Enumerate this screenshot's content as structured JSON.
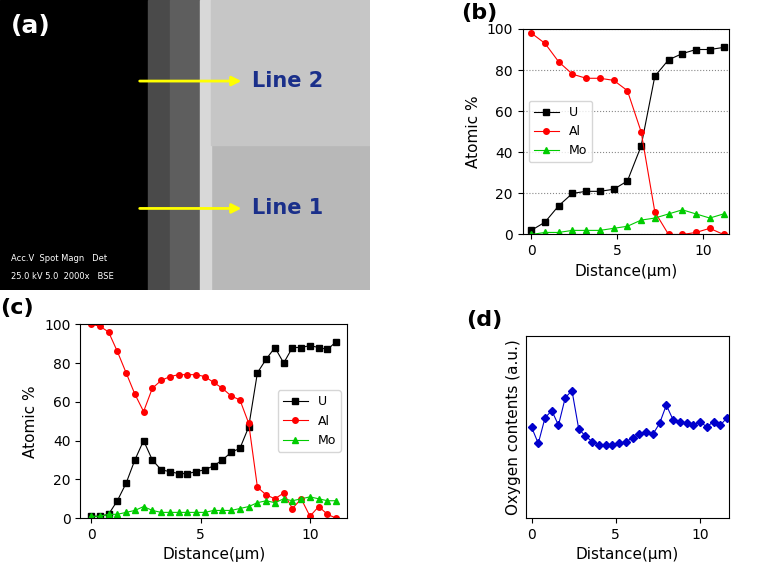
{
  "image": {
    "label": "(a)",
    "annotations": [
      "Line 2",
      "Line 1"
    ],
    "info_bar": [
      "Acc.V  Spot Magn   Det",
      "25.0 kV 5.0  2000x   BSE"
    ]
  },
  "chart_data": [
    {
      "type": "line",
      "title": "(b)",
      "xlabel": "Distance(μm)",
      "ylabel": "Atomic %",
      "x": [
        0,
        0.8,
        1.6,
        2.4,
        3.2,
        4.0,
        4.8,
        5.6,
        6.4,
        7.2,
        8.0,
        8.8,
        9.6,
        10.4,
        11.2
      ],
      "series": [
        {
          "name": "U",
          "color": "#000000",
          "marker": "s",
          "values": [
            2,
            6,
            14,
            20,
            21,
            21,
            22,
            26,
            43,
            77,
            85,
            88,
            90,
            90,
            91
          ]
        },
        {
          "name": "Al",
          "color": "#ff0000",
          "marker": "o",
          "values": [
            98,
            93,
            84,
            78,
            76,
            76,
            75,
            70,
            50,
            11,
            0,
            0,
            1,
            3,
            0
          ]
        },
        {
          "name": "Mo",
          "color": "#00cc00",
          "marker": "^",
          "values": [
            0,
            1,
            1,
            2,
            2,
            2,
            3,
            4,
            7,
            8,
            10,
            12,
            10,
            8,
            10
          ]
        }
      ],
      "xlim": [
        -0.5,
        11.5
      ],
      "xticks": [
        0,
        5,
        10
      ],
      "ylim": [
        0,
        100
      ],
      "yticks": [
        0,
        20,
        40,
        60,
        80,
        100
      ],
      "grid": "y",
      "legend": "center left"
    },
    {
      "type": "line",
      "title": "(c)",
      "xlabel": "Distance(μm)",
      "ylabel": "Atomic %",
      "x": [
        0,
        0.4,
        0.8,
        1.2,
        1.6,
        2.0,
        2.4,
        2.8,
        3.2,
        3.6,
        4.0,
        4.4,
        4.8,
        5.2,
        5.6,
        6.0,
        6.4,
        6.8,
        7.2,
        7.6,
        8.0,
        8.4,
        8.8,
        9.2,
        9.6,
        10.0,
        10.4,
        10.8,
        11.2
      ],
      "series": [
        {
          "name": "U",
          "color": "#000000",
          "marker": "s",
          "values": [
            1,
            1,
            2,
            9,
            18,
            30,
            40,
            30,
            25,
            24,
            23,
            23,
            24,
            25,
            27,
            30,
            34,
            36,
            47,
            75,
            82,
            88,
            80,
            88,
            88,
            89,
            88,
            87,
            91
          ]
        },
        {
          "name": "Al",
          "color": "#ff0000",
          "marker": "o",
          "values": [
            100,
            99,
            96,
            86,
            75,
            64,
            55,
            67,
            71,
            73,
            74,
            74,
            74,
            73,
            70,
            67,
            63,
            61,
            49,
            16,
            12,
            10,
            13,
            5,
            10,
            1,
            6,
            2,
            0
          ]
        },
        {
          "name": "Mo",
          "color": "#00cc00",
          "marker": "^",
          "values": [
            1,
            1,
            2,
            2,
            3,
            4,
            6,
            4,
            3,
            3,
            3,
            3,
            3,
            3,
            4,
            4,
            4,
            5,
            6,
            8,
            9,
            8,
            10,
            9,
            10,
            11,
            10,
            9,
            9
          ]
        }
      ],
      "xlim": [
        -0.5,
        11.7
      ],
      "xticks": [
        0,
        5,
        10
      ],
      "ylim": [
        0,
        100
      ],
      "yticks": [
        0,
        20,
        40,
        60,
        80,
        100
      ],
      "grid": false,
      "legend": "center right"
    },
    {
      "type": "line",
      "title": "(d)",
      "xlabel": "Distance(μm)",
      "ylabel": "Oxygen contents (a.u.)",
      "x": [
        0,
        0.4,
        0.8,
        1.2,
        1.6,
        2.0,
        2.4,
        2.8,
        3.2,
        3.6,
        4.0,
        4.4,
        4.8,
        5.2,
        5.6,
        6.0,
        6.4,
        6.8,
        7.2,
        7.6,
        8.0,
        8.4,
        8.8,
        9.2,
        9.6,
        10.0,
        10.4,
        10.8,
        11.2,
        11.6
      ],
      "series": [
        {
          "color": "#0000cc",
          "marker": "D",
          "values": [
            5.0,
            4.1,
            5.5,
            5.9,
            5.1,
            6.6,
            7.0,
            4.9,
            4.5,
            4.2,
            4.0,
            4.0,
            4.0,
            4.1,
            4.2,
            4.4,
            4.6,
            4.7,
            4.6,
            5.2,
            6.2,
            5.4,
            5.3,
            5.2,
            5.1,
            5.3,
            5.0,
            5.3,
            5.1,
            5.5
          ]
        }
      ],
      "xlim": [
        -0.3,
        11.7
      ],
      "xticks": [
        0,
        5,
        10
      ],
      "ylim": [
        0,
        10
      ],
      "yticks": [],
      "grid": false,
      "tick_labels": "x"
    }
  ]
}
